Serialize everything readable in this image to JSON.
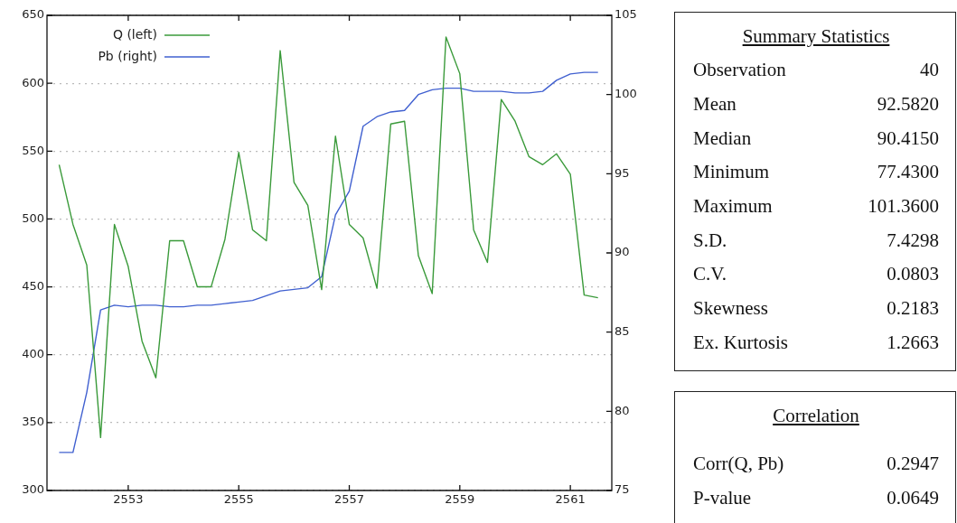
{
  "chart_data": [
    {
      "type": "line",
      "x": [
        2551.75,
        2552,
        2552.25,
        2552.5,
        2552.75,
        2553,
        2553.25,
        2553.5,
        2553.75,
        2554,
        2554.25,
        2554.5,
        2554.75,
        2555,
        2555.25,
        2555.5,
        2555.75,
        2556,
        2556.25,
        2556.5,
        2556.75,
        2557,
        2557.25,
        2557.5,
        2557.75,
        2558,
        2558.25,
        2558.5,
        2558.75,
        2559,
        2559.25,
        2559.5,
        2559.75,
        2560,
        2560.25,
        2560.5,
        2560.75,
        2561,
        2561.25,
        2561.5
      ],
      "series": [
        {
          "name": "Q (left)",
          "color": "#3a9a3a",
          "values": [
            540,
            496,
            466,
            339,
            496,
            465,
            410,
            383,
            484,
            484,
            450,
            450,
            485,
            549,
            492,
            484,
            624,
            527,
            510,
            448,
            561,
            496,
            486,
            449,
            570,
            572,
            473,
            445,
            634,
            607,
            492,
            468,
            588,
            572,
            546,
            540,
            548,
            533,
            444,
            442
          ]
        },
        {
          "name": "Pb (right)",
          "color": "#4060d0",
          "axis": "y2",
          "values": [
            77.4,
            77.4,
            81.2,
            86.4,
            86.7,
            86.6,
            86.7,
            86.7,
            86.6,
            86.6,
            86.7,
            86.7,
            86.8,
            86.9,
            87.0,
            87.3,
            87.6,
            87.7,
            87.8,
            88.5,
            92.4,
            93.9,
            98.0,
            98.6,
            98.9,
            99.0,
            100.0,
            100.3,
            100.4,
            100.4,
            100.2,
            100.2,
            100.2,
            100.1,
            100.1,
            100.2,
            100.9,
            101.3,
            101.4,
            101.4
          ]
        }
      ],
      "xlim": [
        2551.53,
        2561.75
      ],
      "xticks": [
        2553,
        2555,
        2557,
        2559,
        2561
      ],
      "ylim": [
        300,
        650
      ],
      "yticks": [
        300,
        350,
        400,
        450,
        500,
        550,
        600,
        650
      ],
      "y2lim": [
        75,
        105
      ],
      "y2ticks": [
        75,
        80,
        85,
        90,
        95,
        100,
        105
      ],
      "grid": "y",
      "legend": "top left",
      "marker": "none",
      "line_style": "solid"
    },
    {
      "type": "other",
      "title": "Summary Statistics",
      "categories": [
        "Observation",
        "Mean",
        "Median",
        "Minimum",
        "Maximum",
        "S.D.",
        "C.V.",
        "Skewness",
        "Ex. Kurtosis"
      ],
      "value_labels": [
        "40",
        "92.5820",
        "90.4150",
        "77.4300",
        "101.3600",
        "7.4298",
        "0.0803",
        "0.2183",
        "1.2663"
      ]
    },
    {
      "type": "other",
      "title": "Correlation",
      "categories": [
        "Corr(Q, Pb)",
        "P-value"
      ],
      "value_labels": [
        "0.2947",
        "0.0649"
      ]
    }
  ]
}
